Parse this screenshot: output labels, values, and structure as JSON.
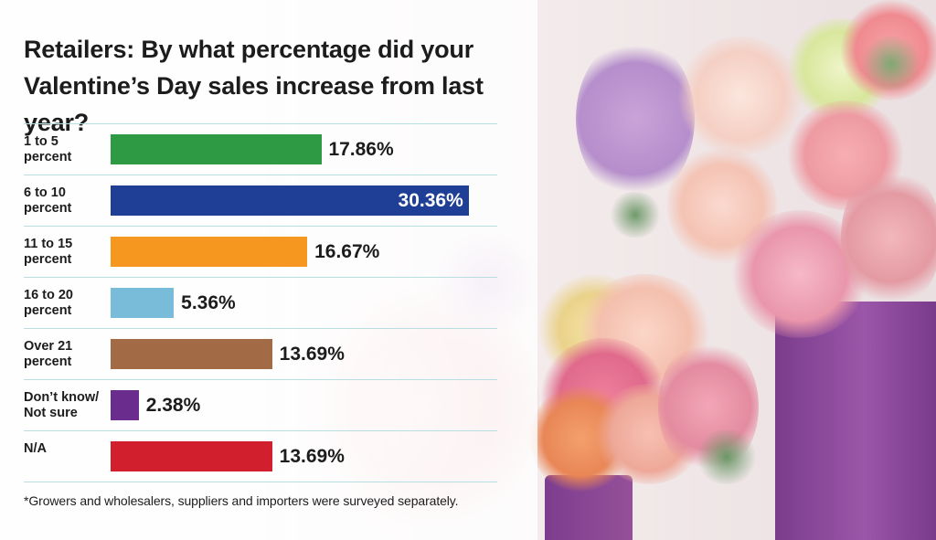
{
  "chart_data": {
    "type": "bar",
    "orientation": "horizontal",
    "title": "Retailers: By what percentage did your Valentine’s Day sales increase from last year?",
    "categories": [
      "1 to 5\npercent",
      "6 to 10\npercent",
      "11 to 15\npercent",
      "16 to 20\npercent",
      "Over 21\npercent",
      "Don’t know/\nNot sure",
      "N/A"
    ],
    "values": [
      17.86,
      30.36,
      16.67,
      5.36,
      13.69,
      2.38,
      13.69
    ],
    "value_labels": [
      "17.86%",
      "30.36%",
      "16.67%",
      "5.36%",
      "13.69%",
      "2.38%",
      "13.69%"
    ],
    "colors": [
      "#2e9a44",
      "#1e3f95",
      "#f6981f",
      "#79bcd9",
      "#a26a45",
      "#6a2d8e",
      "#d21f2e"
    ],
    "xlim": [
      0,
      31
    ],
    "grid": true,
    "legend": "none",
    "footnote": "*Growers and wholesalers, suppliers and importers were surveyed separately."
  }
}
